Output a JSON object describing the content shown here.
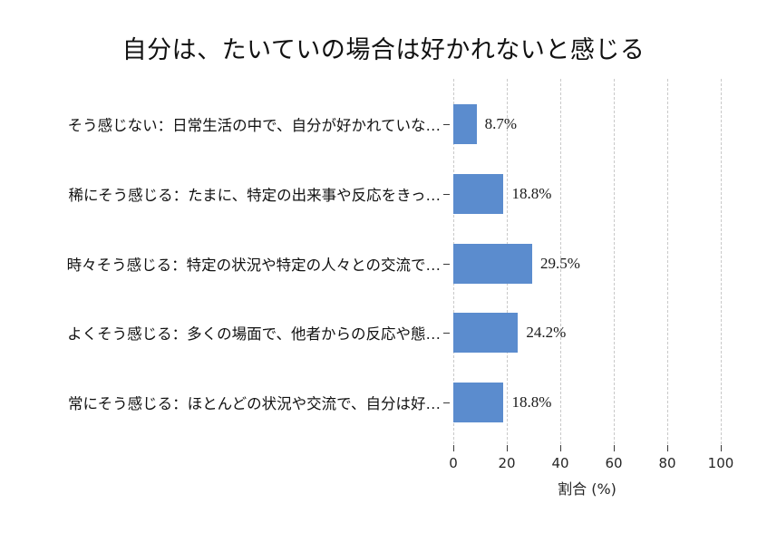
{
  "chart_data": {
    "type": "bar",
    "orientation": "horizontal",
    "title": "自分は、たいていの場合は好かれないと感じる",
    "categories": [
      "そう感じない：日常生活の中で、自分が好かれていな…",
      "稀にそう感じる：たまに、特定の出来事や反応をきっ…",
      "時々そう感じる：特定の状況や特定の人々との交流で…",
      "よくそう感じる：多くの場面で、他者からの反応や態…",
      "常にそう感じる：ほとんどの状況や交流で、自分は好…"
    ],
    "values": [
      8.7,
      18.8,
      29.5,
      24.2,
      18.8
    ],
    "value_labels": [
      "8.7%",
      "18.8%",
      "29.5%",
      "24.2%",
      "18.8%"
    ],
    "xlabel": "割合 (%)",
    "x_ticks": [
      0,
      20,
      40,
      60,
      80,
      100
    ],
    "x_tick_labels": [
      "0",
      "20",
      "40",
      "60",
      "80",
      "100"
    ],
    "xlim": [
      0,
      100
    ],
    "grid": "dashed-vertical",
    "legend": "none",
    "bar_color": "#5b8cce"
  }
}
